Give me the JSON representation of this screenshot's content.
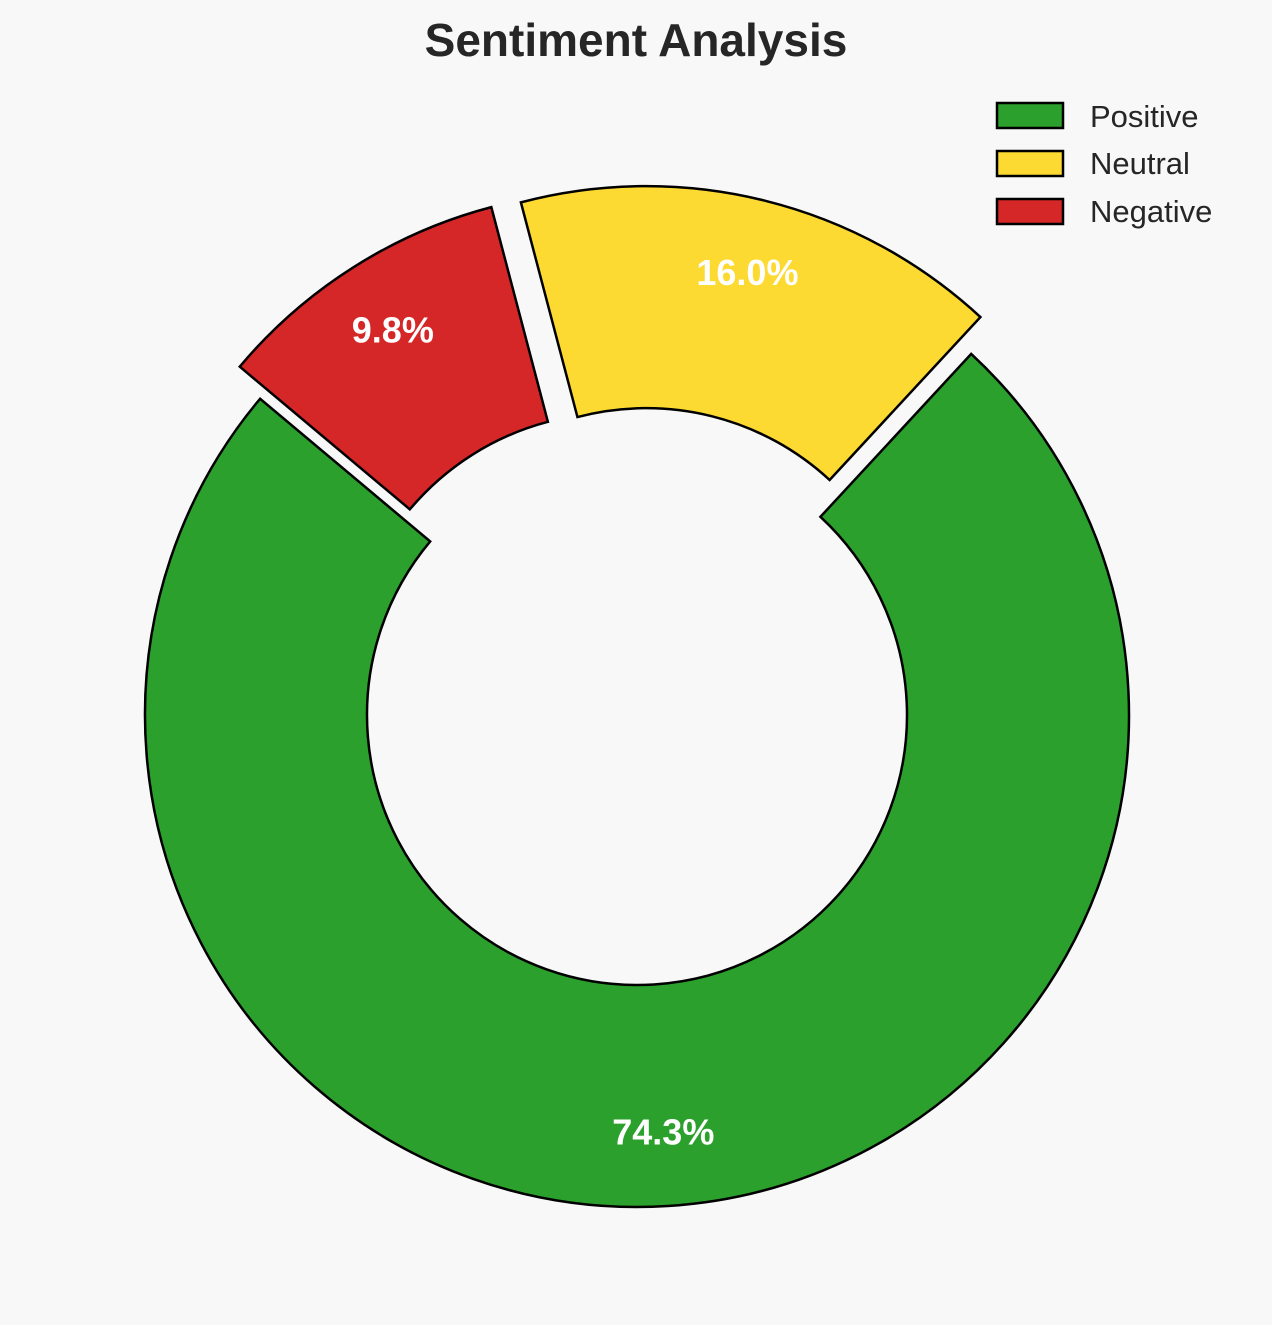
{
  "chart_data": {
    "type": "pie",
    "variant": "donut",
    "title": "Sentiment Analysis",
    "categories": [
      "Positive",
      "Neutral",
      "Negative"
    ],
    "values": [
      74.3,
      16.0,
      9.8
    ],
    "labels": [
      "74.3%",
      "16.0%",
      "9.8%"
    ],
    "colors": [
      "#2ca02c",
      "#fdda32",
      "#d62728"
    ],
    "edge_color": "#000000",
    "inner_fill": "#f8f8f8",
    "start_angle_deg": 140,
    "direction": "counterclockwise",
    "exploded": [
      false,
      true,
      true
    ],
    "legend": {
      "position": "top-right",
      "entries": [
        "Positive",
        "Neutral",
        "Negative"
      ]
    }
  }
}
